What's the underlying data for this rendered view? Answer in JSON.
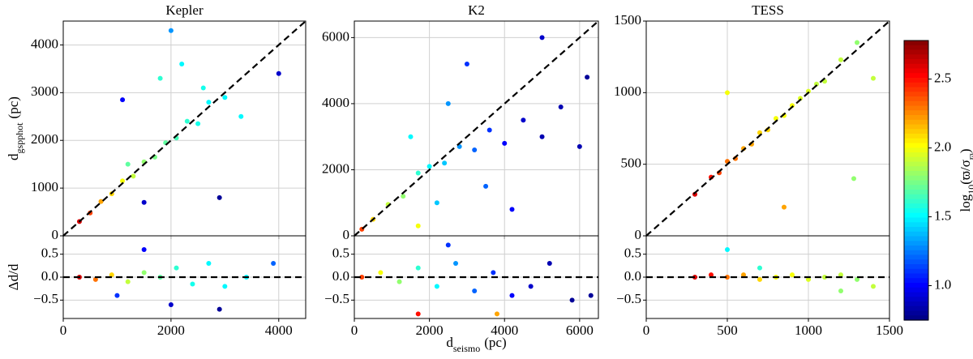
{
  "chart_data": [
    {
      "type": "scatter",
      "title": "Kepler",
      "y_label": [
        {
          "text": "d"
        },
        {
          "text": "gspphot",
          "sub": true
        },
        {
          "text": "(pc)"
        }
      ],
      "xlim": [
        0,
        4500
      ],
      "ylim": [
        0,
        4500
      ],
      "xticks": [
        0,
        2000,
        4000
      ],
      "yticks": [
        0,
        1000,
        2000,
        3000,
        4000
      ],
      "x_tick_labels": false,
      "grid": true,
      "reference": "identity",
      "x": [
        300,
        500,
        700,
        900,
        1100,
        1300,
        1500,
        1700,
        1900,
        2100,
        2300,
        2500,
        2700,
        3000,
        2200,
        1800,
        1100,
        2000,
        1500,
        4000,
        2900,
        3300,
        1200,
        2600
      ],
      "y": [
        300,
        480,
        720,
        880,
        1150,
        1250,
        1550,
        1650,
        1950,
        2050,
        2400,
        2350,
        2800,
        2900,
        3600,
        3300,
        2850,
        4300,
        700,
        3400,
        800,
        2500,
        1500,
        3100
      ],
      "c": [
        2.6,
        2.4,
        2.2,
        2.1,
        2.0,
        1.9,
        1.8,
        1.75,
        1.7,
        1.65,
        1.6,
        1.55,
        1.5,
        1.5,
        1.5,
        1.6,
        1.0,
        1.3,
        0.9,
        0.9,
        0.8,
        1.5,
        1.7,
        1.55
      ]
    },
    {
      "type": "scatter",
      "y_label": [
        {
          "text": "Δd/d"
        }
      ],
      "xlim": [
        0,
        4500
      ],
      "ylim": [
        -0.9,
        0.9
      ],
      "xticks": [
        0,
        2000,
        4000
      ],
      "yticks": [
        {
          "value": -0.5,
          "label": "−0.5"
        },
        {
          "value": 0,
          "label": "0.0"
        },
        0.5
      ],
      "grid": true,
      "reference": "zero",
      "x": [
        300,
        600,
        900,
        1200,
        1500,
        1800,
        2100,
        2400,
        2700,
        3000,
        1500,
        2000,
        3900,
        3400,
        1000,
        2900
      ],
      "y": [
        0.0,
        -0.05,
        0.05,
        -0.1,
        0.1,
        0.0,
        0.2,
        -0.15,
        0.3,
        -0.2,
        0.6,
        -0.6,
        0.3,
        0.0,
        -0.4,
        -0.7
      ],
      "c": [
        2.6,
        2.3,
        2.1,
        1.9,
        1.8,
        1.7,
        1.6,
        1.55,
        1.5,
        1.5,
        1.0,
        0.9,
        1.2,
        1.5,
        1.1,
        0.8
      ]
    },
    {
      "type": "scatter",
      "title": "K2",
      "xlim": [
        0,
        6500
      ],
      "ylim": [
        0,
        6500
      ],
      "xticks": [
        0,
        2000,
        4000,
        6000
      ],
      "yticks": [
        0,
        2000,
        4000,
        6000
      ],
      "x_tick_labels": false,
      "grid": true,
      "reference": "identity",
      "x": [
        200,
        500,
        900,
        1300,
        1700,
        2000,
        2400,
        2800,
        3200,
        3600,
        4000,
        4500,
        5000,
        5500,
        6200,
        3000,
        2500,
        1500,
        3500,
        4200,
        1700,
        6000,
        2200,
        5000
      ],
      "y": [
        200,
        500,
        950,
        1200,
        1900,
        2100,
        2200,
        2700,
        2600,
        3200,
        2800,
        3500,
        3000,
        3900,
        4800,
        5200,
        4000,
        3000,
        1500,
        800,
        300,
        2700,
        1000,
        6000
      ],
      "c": [
        2.4,
        2.1,
        1.9,
        1.8,
        1.6,
        1.5,
        1.4,
        1.3,
        1.2,
        1.1,
        1.0,
        0.9,
        0.85,
        0.85,
        0.8,
        1.1,
        1.3,
        1.5,
        1.2,
        1.0,
        2.0,
        0.85,
        1.4,
        0.9
      ]
    },
    {
      "type": "scatter",
      "x_label": [
        {
          "text": "d"
        },
        {
          "text": "seismo",
          "sub": true
        },
        {
          "text": "(pc)"
        }
      ],
      "xlim": [
        0,
        6500
      ],
      "ylim": [
        -0.9,
        0.9
      ],
      "xticks": [
        0,
        2000,
        4000,
        6000
      ],
      "yticks": [
        {
          "value": -0.5,
          "label": "−0.5"
        },
        {
          "value": 0,
          "label": "0.0"
        },
        0.5
      ],
      "grid": true,
      "reference": "zero",
      "x": [
        200,
        700,
        1200,
        1700,
        2200,
        2700,
        3200,
        3700,
        4200,
        4700,
        5200,
        5800,
        6300,
        1700,
        3800,
        2500
      ],
      "y": [
        0.0,
        0.1,
        -0.1,
        0.2,
        -0.2,
        0.3,
        -0.3,
        0.1,
        -0.4,
        -0.2,
        0.3,
        -0.5,
        -0.4,
        -0.8,
        -0.8,
        0.7
      ],
      "c": [
        2.4,
        2.0,
        1.8,
        1.6,
        1.5,
        1.3,
        1.2,
        1.1,
        1.0,
        0.9,
        0.85,
        0.8,
        0.8,
        2.5,
        2.2,
        1.1
      ]
    },
    {
      "type": "scatter",
      "title": "TESS",
      "xlim": [
        0,
        1500
      ],
      "ylim": [
        0,
        1500
      ],
      "xticks": [
        0,
        500,
        1000,
        1500
      ],
      "yticks": [
        0,
        500,
        1000,
        1500
      ],
      "x_tick_labels": false,
      "grid": true,
      "reference": "identity",
      "x": [
        300,
        400,
        450,
        500,
        550,
        600,
        650,
        700,
        750,
        800,
        850,
        900,
        950,
        1000,
        1050,
        1100,
        1200,
        1300,
        1280,
        500,
        850,
        1400
      ],
      "y": [
        290,
        410,
        440,
        520,
        540,
        610,
        640,
        720,
        740,
        820,
        840,
        910,
        960,
        1010,
        1060,
        1080,
        1230,
        1350,
        400,
        1000,
        200,
        1100
      ],
      "c": [
        2.6,
        2.5,
        2.4,
        2.3,
        2.3,
        2.2,
        2.2,
        2.1,
        2.1,
        2.0,
        2.0,
        2.0,
        1.95,
        1.95,
        1.9,
        1.9,
        1.9,
        1.8,
        1.8,
        2.0,
        2.2,
        1.9
      ]
    },
    {
      "type": "scatter",
      "xlim": [
        0,
        1500
      ],
      "ylim": [
        -0.9,
        0.9
      ],
      "xticks": [
        0,
        500,
        1000,
        1500
      ],
      "yticks": [
        {
          "value": -0.5,
          "label": "−0.5"
        },
        {
          "value": 0,
          "label": "0.0"
        },
        0.5
      ],
      "grid": true,
      "reference": "zero",
      "x": [
        300,
        400,
        500,
        600,
        700,
        800,
        900,
        1000,
        1100,
        1200,
        1300,
        500,
        700,
        1200,
        1400
      ],
      "y": [
        0.0,
        0.05,
        0.0,
        0.05,
        -0.05,
        0.0,
        0.05,
        -0.05,
        0.0,
        0.05,
        -0.05,
        0.6,
        0.2,
        -0.3,
        -0.2
      ],
      "c": [
        2.6,
        2.5,
        2.3,
        2.2,
        2.1,
        2.0,
        2.0,
        1.95,
        1.9,
        1.9,
        1.8,
        1.5,
        1.6,
        1.8,
        1.9
      ]
    },
    {
      "type": "colorbar",
      "colormap": "jet",
      "label": [
        {
          "text": "log"
        },
        {
          "text": "10",
          "sub": true
        },
        {
          "text": "(ϖ/σ"
        },
        {
          "text": "ϖ",
          "sub": true
        },
        {
          "text": ")"
        }
      ],
      "clim": [
        0.75,
        2.78
      ],
      "ticks": [
        {
          "value": 1.0,
          "label": "1.0"
        },
        1.5,
        {
          "value": 2.0,
          "label": "2.0"
        },
        2.5
      ]
    }
  ]
}
